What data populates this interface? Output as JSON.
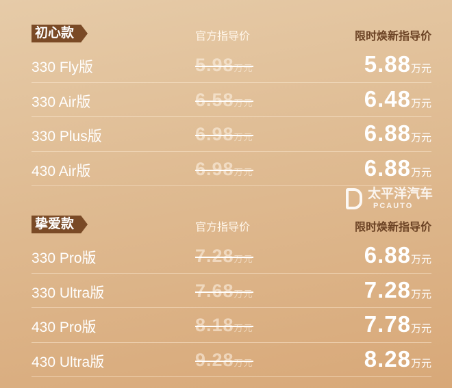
{
  "sections": [
    {
      "tag": "初心款",
      "col_official": "官方指导价",
      "col_promo": "限时焕新指导价",
      "unit": "万元",
      "rows": [
        {
          "name": "330 Fly版",
          "official": "5.98",
          "promo": "5.88"
        },
        {
          "name": "330 Air版",
          "official": "6.58",
          "promo": "6.48"
        },
        {
          "name": "330 Plus版",
          "official": "6.98",
          "promo": "6.88"
        },
        {
          "name": "430 Air版",
          "official": "6.98",
          "promo": "6.88"
        }
      ]
    },
    {
      "tag": "挚爱款",
      "col_official": "官方指导价",
      "col_promo": "限时焕新指导价",
      "unit": "万元",
      "rows": [
        {
          "name": "330 Pro版",
          "official": "7.28",
          "promo": "6.88"
        },
        {
          "name": "330 Ultra版",
          "official": "7.68",
          "promo": "7.28"
        },
        {
          "name": "430 Pro版",
          "official": "8.18",
          "promo": "7.78"
        },
        {
          "name": "430 Ultra版",
          "official": "9.28",
          "promo": "8.28"
        }
      ]
    }
  ],
  "watermark": {
    "text": "太平洋汽车",
    "sub": "PCAUTO"
  }
}
